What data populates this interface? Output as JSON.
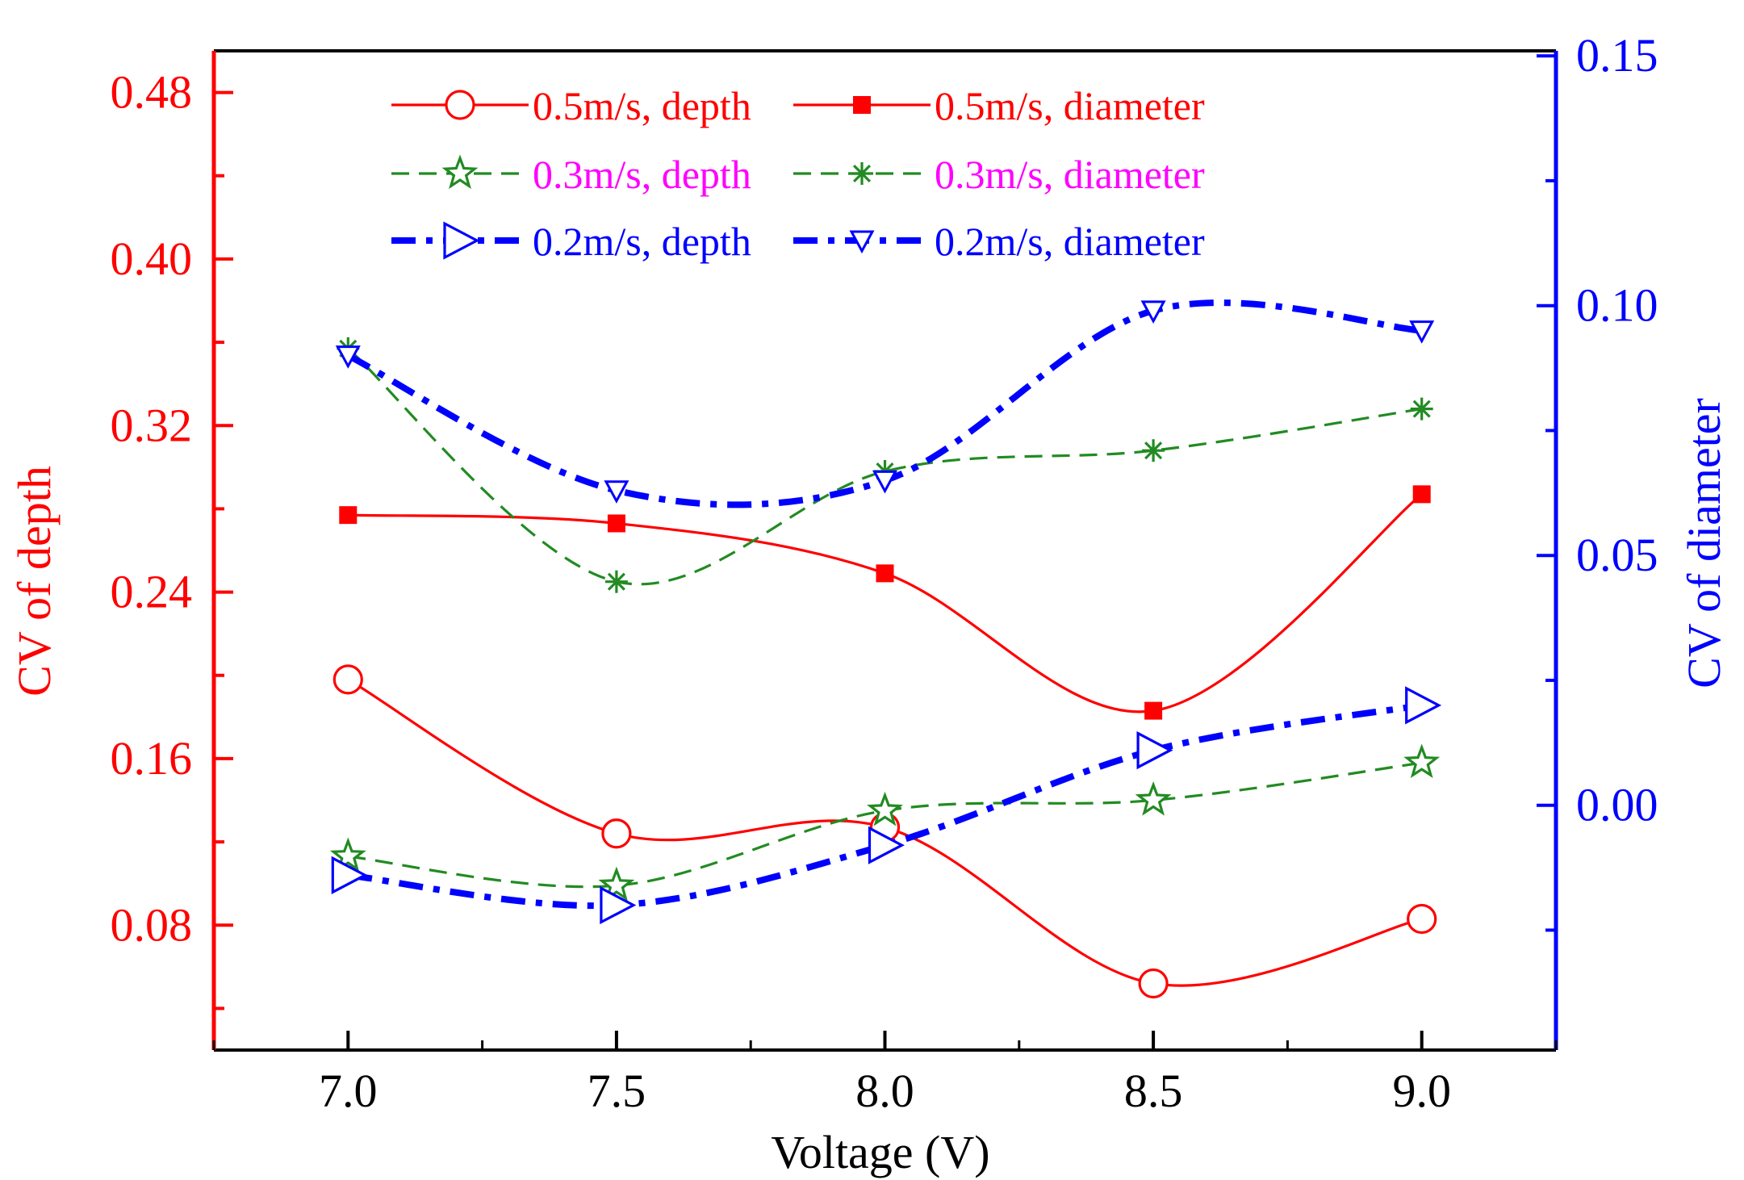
{
  "chart_data": {
    "type": "line",
    "xlabel": "Voltage (V)",
    "ylabel_left": "CV of depth",
    "ylabel_right": "CV of diameter",
    "x": [
      7.0,
      7.5,
      8.0,
      8.5,
      9.0
    ],
    "xlim": [
      6.75,
      9.25
    ],
    "xticks": [
      "7.0",
      "7.5",
      "8.0",
      "8.5",
      "9.0"
    ],
    "ylim_left": [
      0.02,
      0.5
    ],
    "yticks_left": [
      "0.08",
      "0.16",
      "0.24",
      "0.32",
      "0.40",
      "0.48"
    ],
    "ylim_right": [
      -0.049,
      0.151
    ],
    "yticks_right": [
      "0.00",
      "0.05",
      "0.10",
      "0.15"
    ],
    "legend_position": "top",
    "colors": {
      "left_axis": "#ff0000",
      "right_axis": "#0000ff",
      "frame": "#000000"
    },
    "series": [
      {
        "name": "0.5m/s, depth",
        "label_color": "#ff0000",
        "color": "#ff0000",
        "axis": "left",
        "dash": "solid",
        "marker": "open-circle",
        "values": [
          0.198,
          0.124,
          0.127,
          0.052,
          0.083
        ]
      },
      {
        "name": "0.5m/s, diameter",
        "label_color": "#ff0000",
        "color": "#ff0000",
        "axis": "left",
        "dash": "solid",
        "marker": "filled-square",
        "values": [
          0.277,
          0.273,
          0.249,
          0.183,
          0.287
        ]
      },
      {
        "name": "0.3m/s, depth",
        "label_color": "#ff00ff",
        "color": "#228b22",
        "axis": "left",
        "dash": "dashed",
        "marker": "open-star",
        "values": [
          0.113,
          0.099,
          0.135,
          0.14,
          0.158
        ]
      },
      {
        "name": "0.3m/s, diameter",
        "label_color": "#ff00ff",
        "color": "#228b22",
        "axis": "left",
        "dash": "dashed",
        "marker": "asterisk",
        "values": [
          0.357,
          0.245,
          0.298,
          0.308,
          0.328
        ]
      },
      {
        "name": "0.2m/s, depth",
        "label_color": "#0000ff",
        "color": "#0000ff",
        "axis": "right",
        "dash": "dashdot",
        "marker": "open-triangle-right",
        "values": [
          -0.014,
          -0.02,
          -0.008,
          0.011,
          0.02
        ]
      },
      {
        "name": "0.2m/s, diameter",
        "label_color": "#0000ff",
        "color": "#0000ff",
        "axis": "right",
        "dash": "dashdot",
        "marker": "open-triangle-down",
        "values": [
          0.09,
          0.063,
          0.065,
          0.099,
          0.095
        ]
      }
    ]
  }
}
